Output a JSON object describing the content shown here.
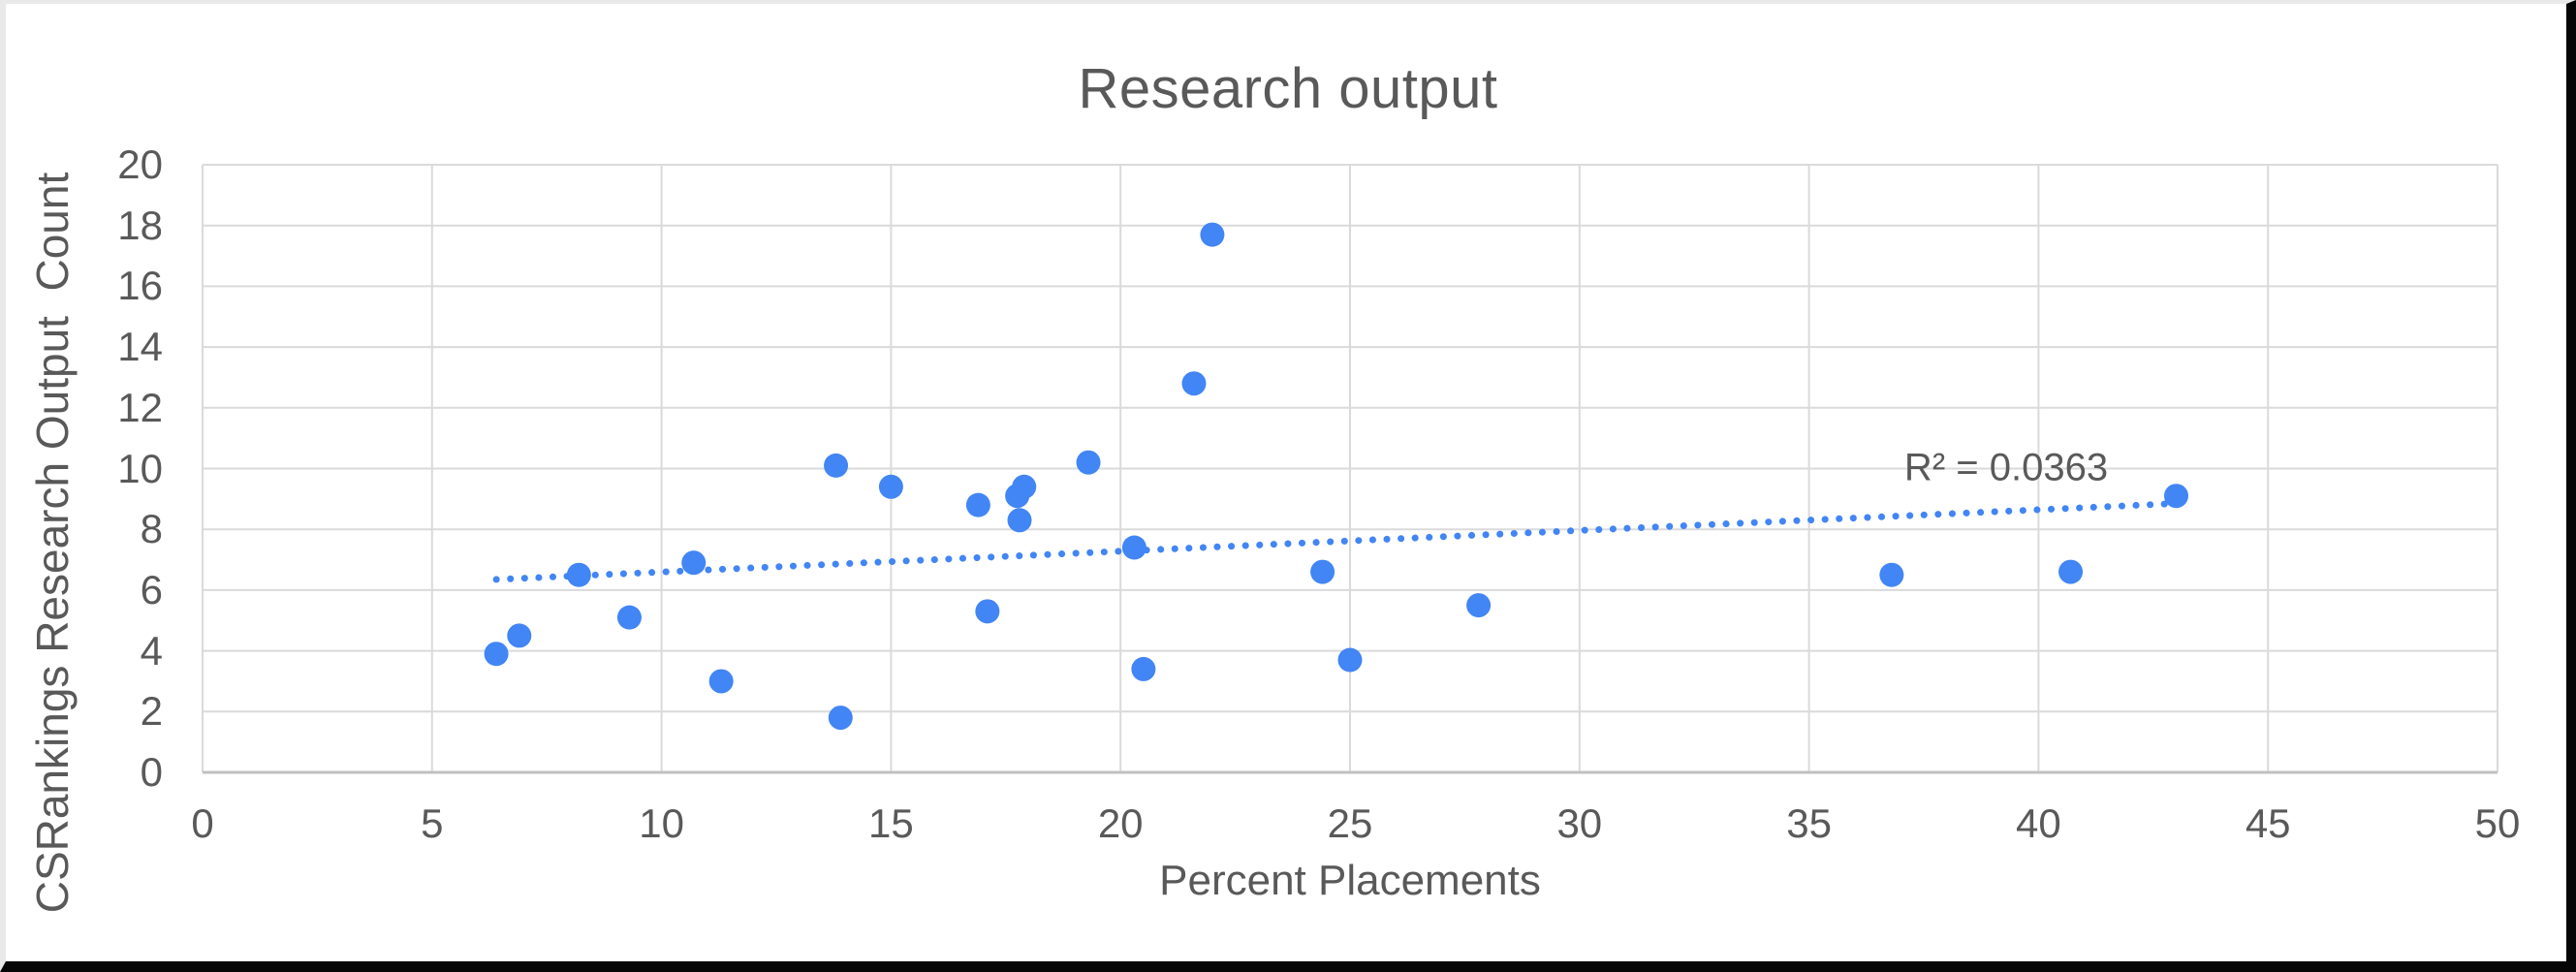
{
  "chart_data": {
    "type": "scatter",
    "title": "Research output",
    "xlabel": "Percent Placements",
    "ylabel": "CSRankings Research Output  Count",
    "xlim": [
      0,
      50
    ],
    "ylim": [
      0,
      20
    ],
    "x_ticks": [
      0,
      5,
      10,
      15,
      20,
      25,
      30,
      35,
      40,
      45,
      50
    ],
    "y_ticks": [
      0,
      2,
      4,
      6,
      8,
      10,
      12,
      14,
      16,
      18,
      20
    ],
    "grid": true,
    "legend": "none",
    "points": [
      [
        6.4,
        3.9
      ],
      [
        6.9,
        4.5
      ],
      [
        8.2,
        6.5
      ],
      [
        9.3,
        5.1
      ],
      [
        10.7,
        6.9
      ],
      [
        11.3,
        3.0
      ],
      [
        13.8,
        10.1
      ],
      [
        13.9,
        1.8
      ],
      [
        15.0,
        9.4
      ],
      [
        16.9,
        8.8
      ],
      [
        17.1,
        5.3
      ],
      [
        17.75,
        9.1
      ],
      [
        17.9,
        9.4
      ],
      [
        17.8,
        8.3
      ],
      [
        19.3,
        10.2
      ],
      [
        20.3,
        7.4
      ],
      [
        20.5,
        3.4
      ],
      [
        21.6,
        12.8
      ],
      [
        22.0,
        17.7
      ],
      [
        24.4,
        6.6
      ],
      [
        25.0,
        3.7
      ],
      [
        27.8,
        5.5
      ],
      [
        36.8,
        6.5
      ],
      [
        40.7,
        6.6
      ],
      [
        43.0,
        9.1
      ]
    ],
    "trendline": {
      "style": "dotted",
      "x_start": 6.4,
      "y_start": 6.35,
      "x_end": 43.0,
      "y_end": 8.85,
      "r_squared": 0.0363,
      "label": "R² = 0.0363"
    },
    "colors": {
      "marker": "#4285F4",
      "trendline": "#4285F4",
      "gridline": "#dadada",
      "axis_line": "#c0c0c0",
      "text": "#595959"
    }
  }
}
